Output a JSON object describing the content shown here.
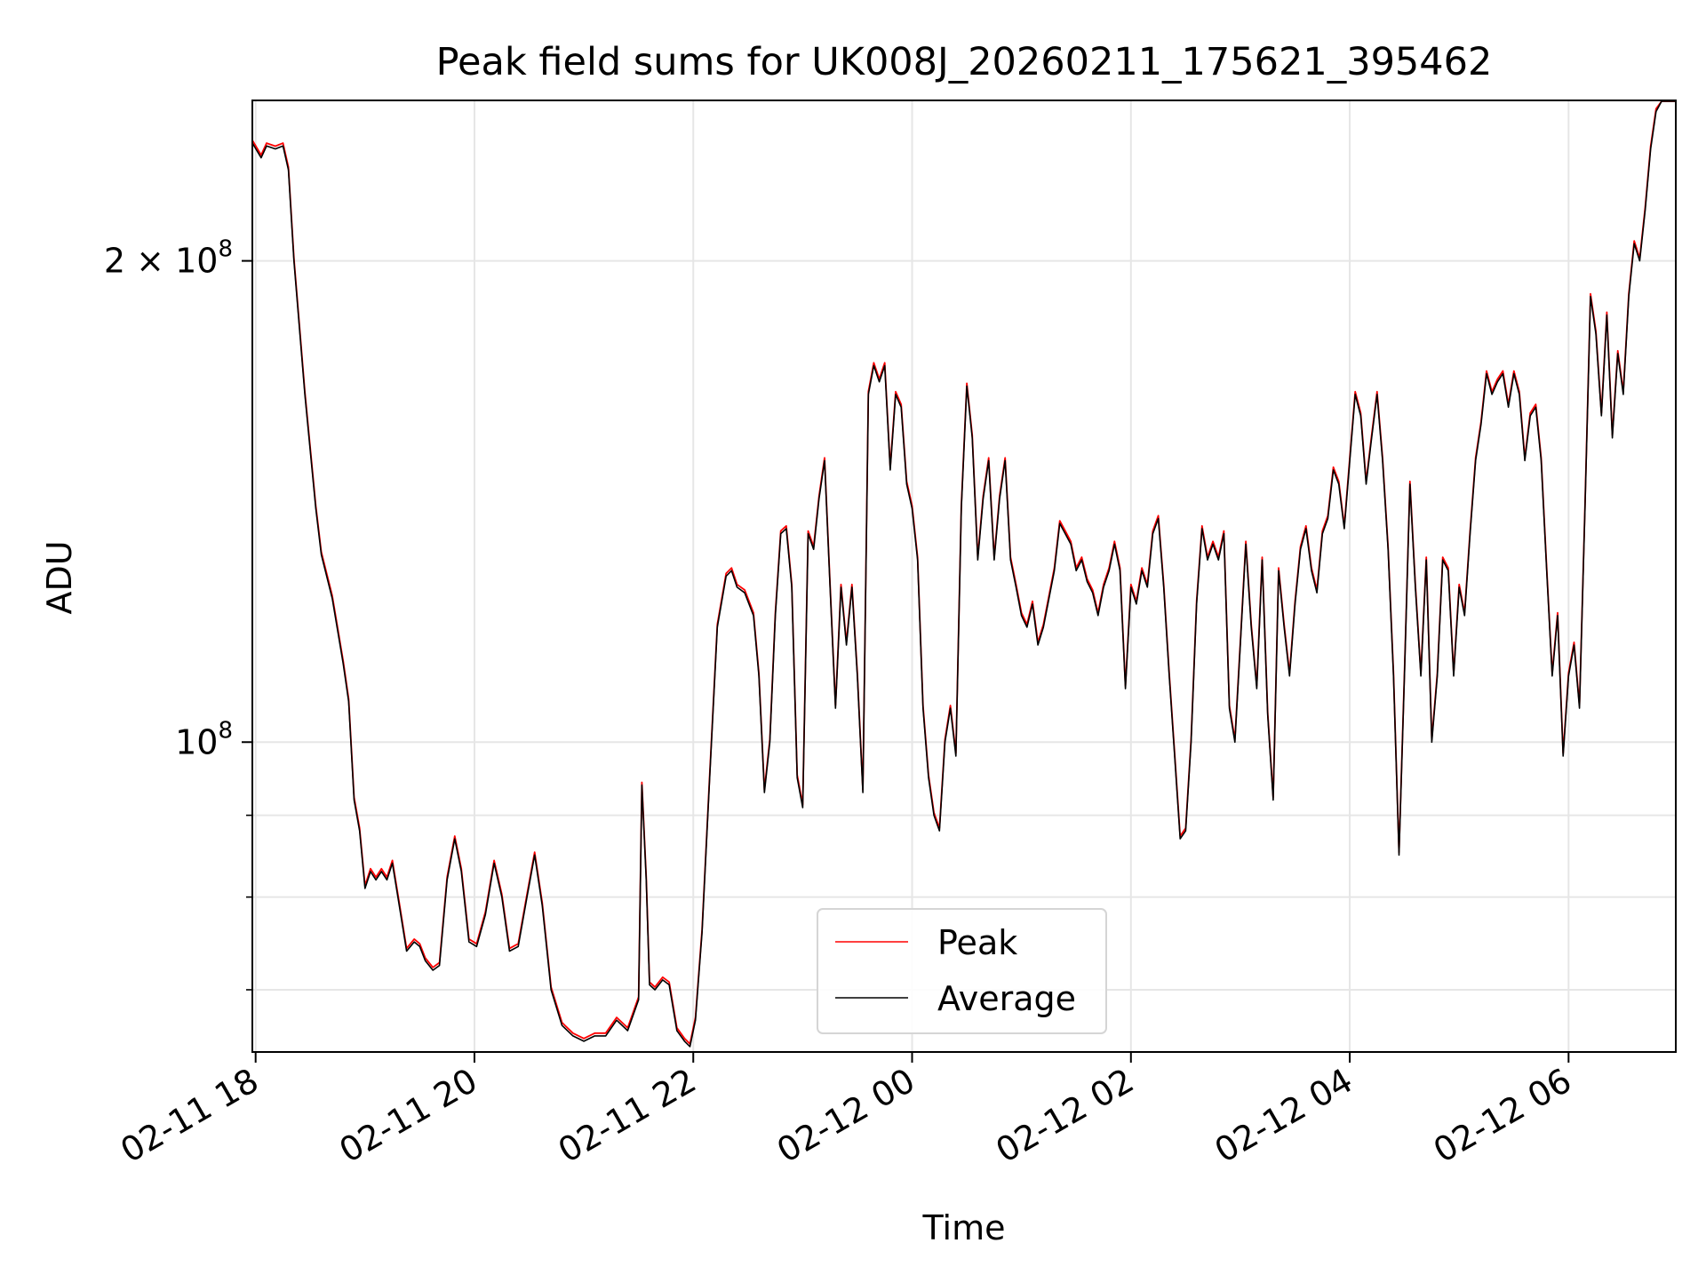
{
  "chart_data": {
    "type": "line",
    "title": "Peak field sums for UK008J_20260211_175621_395462",
    "xlabel": "Time",
    "ylabel": "ADU",
    "yscale": "log",
    "grid": true,
    "xlim": [
      17.97,
      30.98
    ],
    "ylim": [
      64000000,
      252000000
    ],
    "x_unit": "hours since 2026-02-11 00:00",
    "x_ticks": [
      {
        "value": 18,
        "label": "02-11 18"
      },
      {
        "value": 20,
        "label": "02-11 20"
      },
      {
        "value": 22,
        "label": "02-11 22"
      },
      {
        "value": 24,
        "label": "02-12 00"
      },
      {
        "value": 26,
        "label": "02-12 02"
      },
      {
        "value": 28,
        "label": "02-12 04"
      },
      {
        "value": 30,
        "label": "02-12 06"
      }
    ],
    "y_major_ticks": [
      {
        "value": 100000000,
        "base": "10",
        "exp": "8",
        "mantissa": ""
      },
      {
        "value": 200000000,
        "base": "10",
        "exp": "8",
        "mantissa": "2 × "
      }
    ],
    "y_minor_ticks": [
      70000000,
      80000000,
      90000000
    ],
    "legend": {
      "location": "lower center",
      "entries": [
        "Peak",
        "Average"
      ]
    },
    "series": [
      {
        "name": "Peak",
        "color": "#ff0000"
      },
      {
        "name": "Average",
        "color": "#000000"
      }
    ],
    "average_points": [
      [
        17.97,
        237000000
      ],
      [
        18.05,
        232000000
      ],
      [
        18.1,
        236000000
      ],
      [
        18.18,
        235000000
      ],
      [
        18.25,
        236000000
      ],
      [
        18.3,
        228000000
      ],
      [
        18.35,
        200000000
      ],
      [
        18.45,
        165000000
      ],
      [
        18.55,
        140000000
      ],
      [
        18.6,
        131000000
      ],
      [
        18.7,
        123000000
      ],
      [
        18.8,
        112000000
      ],
      [
        18.85,
        106000000
      ],
      [
        18.9,
        92000000
      ],
      [
        18.95,
        88000000
      ],
      [
        19.0,
        81000000
      ],
      [
        19.05,
        83000000
      ],
      [
        19.1,
        82000000
      ],
      [
        19.15,
        83000000
      ],
      [
        19.2,
        82000000
      ],
      [
        19.25,
        84000000
      ],
      [
        19.3,
        80000000
      ],
      [
        19.38,
        74000000
      ],
      [
        19.45,
        75000000
      ],
      [
        19.5,
        74500000
      ],
      [
        19.55,
        73000000
      ],
      [
        19.62,
        72000000
      ],
      [
        19.68,
        72500000
      ],
      [
        19.75,
        82000000
      ],
      [
        19.82,
        87000000
      ],
      [
        19.88,
        83000000
      ],
      [
        19.95,
        75000000
      ],
      [
        20.02,
        74500000
      ],
      [
        20.1,
        78000000
      ],
      [
        20.18,
        84000000
      ],
      [
        20.25,
        80000000
      ],
      [
        20.32,
        74000000
      ],
      [
        20.4,
        74500000
      ],
      [
        20.48,
        80000000
      ],
      [
        20.55,
        85000000
      ],
      [
        20.62,
        79000000
      ],
      [
        20.7,
        70000000
      ],
      [
        20.8,
        66500000
      ],
      [
        20.9,
        65500000
      ],
      [
        21.0,
        65000000
      ],
      [
        21.1,
        65500000
      ],
      [
        21.2,
        65500000
      ],
      [
        21.3,
        67000000
      ],
      [
        21.4,
        66000000
      ],
      [
        21.5,
        69000000
      ],
      [
        21.53,
        94000000
      ],
      [
        21.57,
        82000000
      ],
      [
        21.6,
        70500000
      ],
      [
        21.65,
        70000000
      ],
      [
        21.72,
        71000000
      ],
      [
        21.78,
        70500000
      ],
      [
        21.85,
        66000000
      ],
      [
        21.92,
        65000000
      ],
      [
        21.97,
        64500000
      ],
      [
        22.02,
        67000000
      ],
      [
        22.08,
        76000000
      ],
      [
        22.15,
        95000000
      ],
      [
        22.22,
        118000000
      ],
      [
        22.3,
        127000000
      ],
      [
        22.35,
        128000000
      ],
      [
        22.4,
        125000000
      ],
      [
        22.47,
        124000000
      ],
      [
        22.55,
        120000000
      ],
      [
        22.6,
        110000000
      ],
      [
        22.65,
        93000000
      ],
      [
        22.7,
        100000000
      ],
      [
        22.75,
        120000000
      ],
      [
        22.8,
        135000000
      ],
      [
        22.85,
        136000000
      ],
      [
        22.9,
        125000000
      ],
      [
        22.95,
        95000000
      ],
      [
        23.0,
        91000000
      ],
      [
        23.05,
        135000000
      ],
      [
        23.1,
        132000000
      ],
      [
        23.15,
        142000000
      ],
      [
        23.2,
        150000000
      ],
      [
        23.25,
        125000000
      ],
      [
        23.3,
        105000000
      ],
      [
        23.35,
        125000000
      ],
      [
        23.4,
        115000000
      ],
      [
        23.45,
        125000000
      ],
      [
        23.5,
        110000000
      ],
      [
        23.55,
        93000000
      ],
      [
        23.6,
        165000000
      ],
      [
        23.65,
        172000000
      ],
      [
        23.7,
        168000000
      ],
      [
        23.75,
        172000000
      ],
      [
        23.8,
        148000000
      ],
      [
        23.85,
        165000000
      ],
      [
        23.9,
        162000000
      ],
      [
        23.95,
        145000000
      ],
      [
        24.0,
        140000000
      ],
      [
        24.05,
        130000000
      ],
      [
        24.1,
        105000000
      ],
      [
        24.15,
        95000000
      ],
      [
        24.2,
        90000000
      ],
      [
        24.25,
        88000000
      ],
      [
        24.3,
        100000000
      ],
      [
        24.35,
        105000000
      ],
      [
        24.4,
        98000000
      ],
      [
        24.45,
        140000000
      ],
      [
        24.5,
        167000000
      ],
      [
        24.55,
        155000000
      ],
      [
        24.6,
        130000000
      ],
      [
        24.65,
        142000000
      ],
      [
        24.7,
        150000000
      ],
      [
        24.75,
        130000000
      ],
      [
        24.8,
        142000000
      ],
      [
        24.85,
        150000000
      ],
      [
        24.9,
        130000000
      ],
      [
        24.95,
        125000000
      ],
      [
        25.0,
        120000000
      ],
      [
        25.05,
        118000000
      ],
      [
        25.1,
        122000000
      ],
      [
        25.15,
        115000000
      ],
      [
        25.2,
        118000000
      ],
      [
        25.3,
        128000000
      ],
      [
        25.35,
        137000000
      ],
      [
        25.4,
        135000000
      ],
      [
        25.45,
        133000000
      ],
      [
        25.5,
        128000000
      ],
      [
        25.55,
        130000000
      ],
      [
        25.6,
        126000000
      ],
      [
        25.65,
        124000000
      ],
      [
        25.7,
        120000000
      ],
      [
        25.75,
        125000000
      ],
      [
        25.8,
        128000000
      ],
      [
        25.85,
        133000000
      ],
      [
        25.9,
        128000000
      ],
      [
        25.95,
        108000000
      ],
      [
        26.0,
        125000000
      ],
      [
        26.05,
        122000000
      ],
      [
        26.1,
        128000000
      ],
      [
        26.15,
        125000000
      ],
      [
        26.2,
        135000000
      ],
      [
        26.25,
        138000000
      ],
      [
        26.3,
        125000000
      ],
      [
        26.35,
        110000000
      ],
      [
        26.4,
        98000000
      ],
      [
        26.45,
        87000000
      ],
      [
        26.5,
        88000000
      ],
      [
        26.55,
        100000000
      ],
      [
        26.6,
        122000000
      ],
      [
        26.65,
        136000000
      ],
      [
        26.7,
        130000000
      ],
      [
        26.75,
        133000000
      ],
      [
        26.8,
        130000000
      ],
      [
        26.85,
        135000000
      ],
      [
        26.9,
        105000000
      ],
      [
        26.95,
        100000000
      ],
      [
        27.0,
        115000000
      ],
      [
        27.05,
        133000000
      ],
      [
        27.1,
        118000000
      ],
      [
        27.15,
        108000000
      ],
      [
        27.2,
        130000000
      ],
      [
        27.25,
        104000000
      ],
      [
        27.3,
        92000000
      ],
      [
        27.35,
        128000000
      ],
      [
        27.4,
        118000000
      ],
      [
        27.45,
        110000000
      ],
      [
        27.5,
        122000000
      ],
      [
        27.55,
        132000000
      ],
      [
        27.6,
        136000000
      ],
      [
        27.65,
        128000000
      ],
      [
        27.7,
        124000000
      ],
      [
        27.75,
        135000000
      ],
      [
        27.8,
        138000000
      ],
      [
        27.85,
        148000000
      ],
      [
        27.9,
        145000000
      ],
      [
        27.95,
        136000000
      ],
      [
        28.0,
        150000000
      ],
      [
        28.05,
        165000000
      ],
      [
        28.1,
        160000000
      ],
      [
        28.15,
        145000000
      ],
      [
        28.2,
        155000000
      ],
      [
        28.25,
        165000000
      ],
      [
        28.3,
        150000000
      ],
      [
        28.35,
        132000000
      ],
      [
        28.4,
        110000000
      ],
      [
        28.45,
        85000000
      ],
      [
        28.5,
        110000000
      ],
      [
        28.55,
        145000000
      ],
      [
        28.6,
        125000000
      ],
      [
        28.65,
        110000000
      ],
      [
        28.7,
        130000000
      ],
      [
        28.75,
        100000000
      ],
      [
        28.8,
        110000000
      ],
      [
        28.85,
        130000000
      ],
      [
        28.9,
        128000000
      ],
      [
        28.95,
        110000000
      ],
      [
        29.0,
        125000000
      ],
      [
        29.05,
        120000000
      ],
      [
        29.1,
        135000000
      ],
      [
        29.15,
        150000000
      ],
      [
        29.2,
        158000000
      ],
      [
        29.25,
        170000000
      ],
      [
        29.3,
        165000000
      ],
      [
        29.35,
        168000000
      ],
      [
        29.4,
        170000000
      ],
      [
        29.45,
        162000000
      ],
      [
        29.5,
        170000000
      ],
      [
        29.55,
        165000000
      ],
      [
        29.6,
        150000000
      ],
      [
        29.65,
        160000000
      ],
      [
        29.7,
        162000000
      ],
      [
        29.75,
        150000000
      ],
      [
        29.8,
        128000000
      ],
      [
        29.85,
        110000000
      ],
      [
        29.9,
        120000000
      ],
      [
        29.95,
        98000000
      ],
      [
        30.0,
        110000000
      ],
      [
        30.05,
        115000000
      ],
      [
        30.1,
        105000000
      ],
      [
        30.15,
        140000000
      ],
      [
        30.2,
        190000000
      ],
      [
        30.25,
        180000000
      ],
      [
        30.3,
        160000000
      ],
      [
        30.35,
        185000000
      ],
      [
        30.4,
        155000000
      ],
      [
        30.45,
        175000000
      ],
      [
        30.5,
        165000000
      ],
      [
        30.55,
        190000000
      ],
      [
        30.6,
        205000000
      ],
      [
        30.65,
        200000000
      ],
      [
        30.7,
        215000000
      ],
      [
        30.75,
        235000000
      ],
      [
        30.8,
        248000000
      ],
      [
        30.85,
        252000000
      ],
      [
        30.98,
        252000000
      ]
    ]
  }
}
